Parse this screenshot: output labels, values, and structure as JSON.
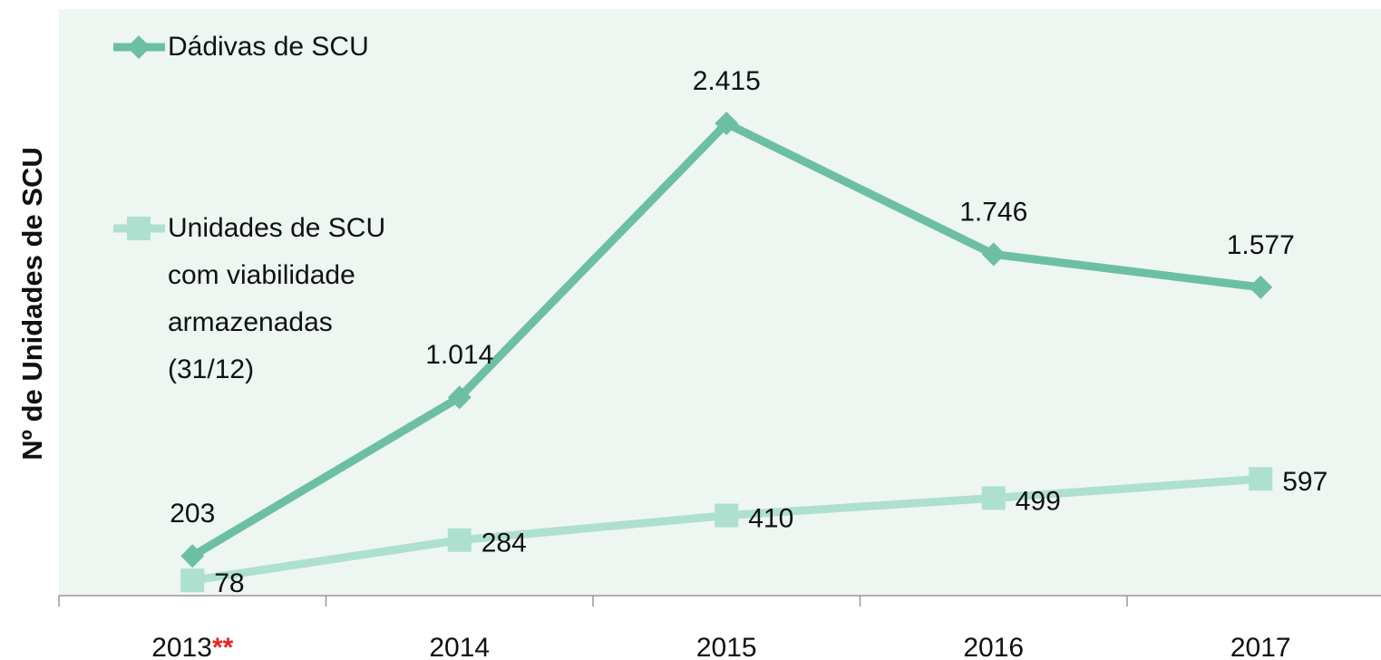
{
  "chart_data": {
    "type": "line",
    "y_label": "Nº de Unidades de SCU",
    "categories": [
      "2013",
      "2014",
      "2015",
      "2016",
      "2017"
    ],
    "category_note": "**",
    "ylim": [
      0,
      3000
    ],
    "series": [
      {
        "name": "Dádivas de SCU",
        "color": "#6dbfa3",
        "marker": "diamond",
        "values": [
          203,
          1014,
          2415,
          1746,
          1577
        ],
        "value_labels": [
          "203",
          "1.014",
          "2.415",
          "1.746",
          "1.577"
        ]
      },
      {
        "name": "Unidades de SCU com viabilidade armazenadas (31/12)",
        "color": "#aee0cf",
        "marker": "square",
        "values": [
          78,
          284,
          410,
          499,
          597
        ]
      }
    ]
  }
}
